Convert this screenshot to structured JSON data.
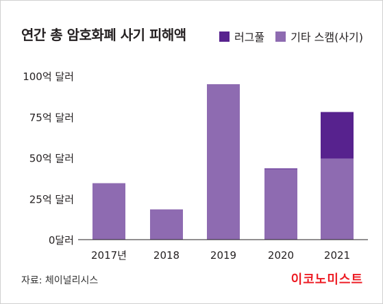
{
  "chart_data": {
    "type": "bar",
    "stacked": true,
    "title": "연간 총 암호화폐 사기 피해액",
    "categories": [
      "2017년",
      "2018",
      "2019",
      "2020",
      "2021"
    ],
    "series": [
      {
        "name": "기타 스캠(사기)",
        "color": "#8e6bb1",
        "values": [
          34.5,
          18.5,
          95,
          43,
          49.5
        ]
      },
      {
        "name": "러그풀",
        "color": "#57228e",
        "values": [
          0,
          0,
          0,
          0.5,
          28.5
        ]
      }
    ],
    "ylim": [
      0,
      100
    ],
    "yticks": [
      0,
      25,
      50,
      75,
      100
    ],
    "ytick_labels": [
      "0달러",
      "25억 달러",
      "50억 달러",
      "75억 달러",
      "100억 달러"
    ],
    "legend": "top-right",
    "grid": false
  },
  "footer": {
    "source": "자료: 체이널리시스",
    "brand": "이코노미스트"
  }
}
